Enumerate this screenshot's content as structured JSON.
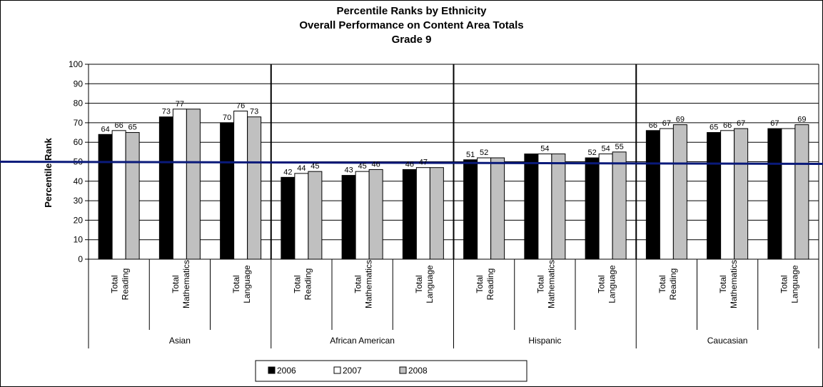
{
  "chart_data": {
    "type": "bar",
    "title": [
      "Percentile Ranks by Ethnicity",
      "Overall Performance on Content Area Totals",
      "Grade 9"
    ],
    "ylabel": "Percentile Rank",
    "xlabel": "",
    "ylim": [
      0,
      100
    ],
    "yticks": [
      0,
      10,
      20,
      30,
      40,
      50,
      60,
      70,
      80,
      90,
      100
    ],
    "grid": true,
    "legend_position": "bottom",
    "reference_line": 50,
    "groups": [
      "Asian",
      "African American",
      "Hispanic",
      "Caucasian"
    ],
    "subcategories": [
      [
        "Total",
        "Reading"
      ],
      [
        "Total",
        "Mathematics"
      ],
      [
        "Total",
        "Language"
      ]
    ],
    "series": [
      {
        "name": "2006",
        "color": "#000000",
        "values": [
          64,
          73,
          70,
          42,
          43,
          46,
          51,
          54,
          52,
          66,
          65,
          67
        ],
        "labels": [
          "64",
          "73",
          "70",
          "42",
          "43",
          "46",
          "51",
          "",
          "52",
          "66",
          "65",
          "67"
        ]
      },
      {
        "name": "2007",
        "color": "#ffffff",
        "values": [
          66,
          77,
          76,
          44,
          45,
          47,
          52,
          54,
          54,
          67,
          66,
          67
        ],
        "labels": [
          "66",
          "77",
          "76",
          "44",
          "45",
          "47",
          "52",
          "54",
          "54",
          "67",
          "66",
          ""
        ]
      },
      {
        "name": "2008",
        "color": "#c0c0c0",
        "values": [
          65,
          77,
          73,
          45,
          46,
          47,
          52,
          54,
          55,
          69,
          67,
          69
        ],
        "labels": [
          "65",
          "",
          "73",
          "45",
          "46",
          "",
          "",
          "",
          "55",
          "69",
          "67",
          "69"
        ]
      }
    ]
  }
}
